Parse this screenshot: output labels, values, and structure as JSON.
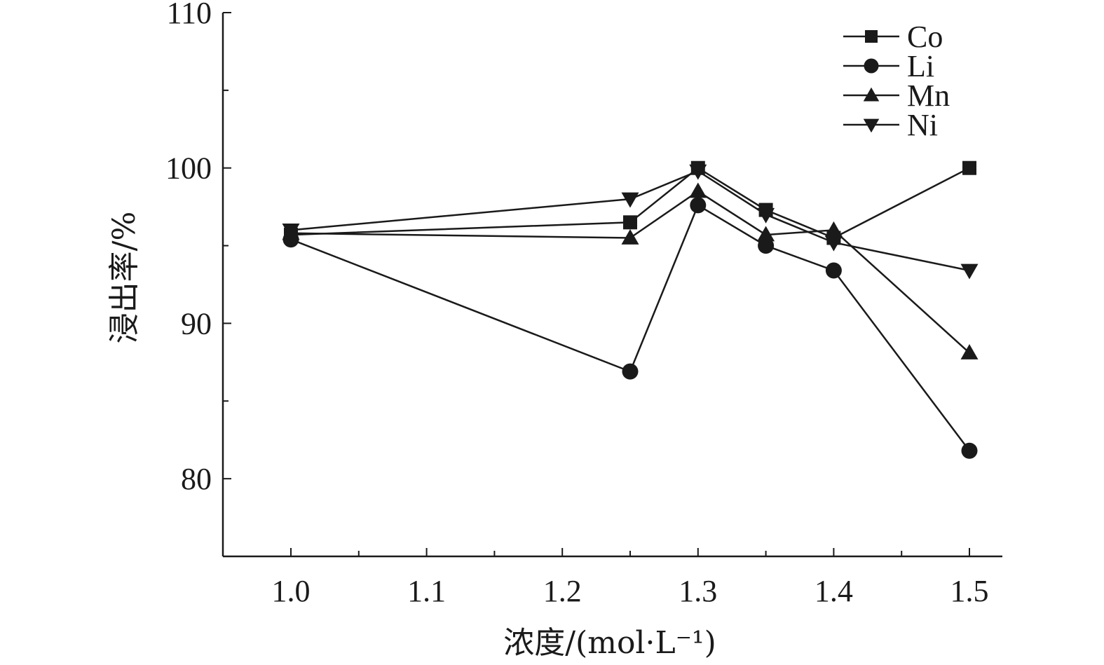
{
  "chart_data": {
    "type": "line",
    "xlabel": "浓度/(mol·L⁻¹)",
    "ylabel": "浸出率/%",
    "xlim": [
      0.95,
      1.5
    ],
    "ylim": [
      75,
      110
    ],
    "x_ticks": [
      "1.0",
      "1.1",
      "1.2",
      "1.3",
      "1.4",
      "1.5"
    ],
    "x_tick_values": [
      1.0,
      1.1,
      1.2,
      1.3,
      1.4,
      1.5
    ],
    "y_ticks": [
      "80",
      "90",
      "100",
      "110"
    ],
    "y_tick_values": [
      80,
      90,
      100,
      110
    ],
    "x": [
      1.0,
      1.25,
      1.3,
      1.35,
      1.4,
      1.5
    ],
    "series": [
      {
        "name": "Co",
        "marker": "square",
        "values": [
          95.7,
          96.5,
          100.0,
          97.3,
          95.5,
          100.0
        ]
      },
      {
        "name": "Li",
        "marker": "circle",
        "values": [
          95.4,
          86.9,
          97.6,
          95.0,
          93.4,
          81.8
        ]
      },
      {
        "name": "Mn",
        "marker": "triangle-up",
        "values": [
          95.8,
          95.5,
          98.5,
          95.7,
          96.0,
          88.1
        ]
      },
      {
        "name": "Ni",
        "marker": "triangle-down",
        "values": [
          96.0,
          98.0,
          99.8,
          97.0,
          95.2,
          93.4
        ]
      }
    ],
    "legend_position": "top-right",
    "grid": false,
    "color": "#1a1a1a"
  }
}
